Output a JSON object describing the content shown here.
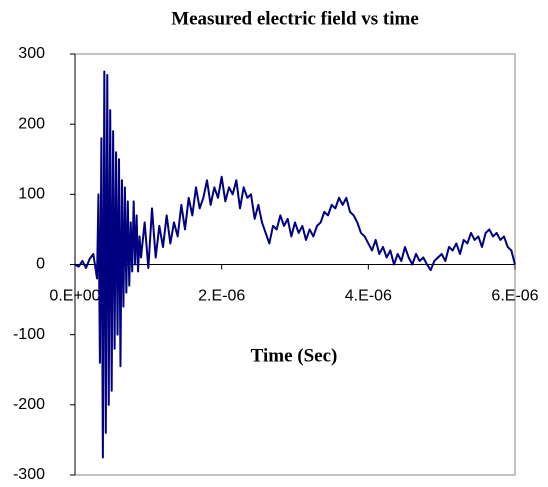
{
  "chart_data": {
    "type": "line",
    "title": "Measured electric field vs time",
    "x_label": "Time (Sec)",
    "x": [
      0,
      5e-08,
      1e-07,
      1.5e-07,
      2e-07,
      2.5e-07,
      3e-07,
      3.2e-07,
      3.4e-07,
      3.6e-07,
      3.8e-07,
      4e-07,
      4.2e-07,
      4.4e-07,
      4.6e-07,
      4.8e-07,
      5e-07,
      5.2e-07,
      5.4e-07,
      5.6e-07,
      5.8e-07,
      6e-07,
      6.2e-07,
      6.4e-07,
      6.6e-07,
      6.8e-07,
      7e-07,
      7.2e-07,
      7.4e-07,
      7.6e-07,
      7.8e-07,
      8e-07,
      8.2e-07,
      8.4e-07,
      8.6e-07,
      8.8e-07,
      9e-07,
      9.5e-07,
      1e-06,
      1.05e-06,
      1.1e-06,
      1.15e-06,
      1.2e-06,
      1.25e-06,
      1.3e-06,
      1.35e-06,
      1.4e-06,
      1.45e-06,
      1.5e-06,
      1.55e-06,
      1.6e-06,
      1.65e-06,
      1.7e-06,
      1.75e-06,
      1.8e-06,
      1.85e-06,
      1.9e-06,
      1.95e-06,
      2e-06,
      2.05e-06,
      2.1e-06,
      2.15e-06,
      2.2e-06,
      2.25e-06,
      2.3e-06,
      2.35e-06,
      2.4e-06,
      2.45e-06,
      2.5e-06,
      2.55e-06,
      2.6e-06,
      2.65e-06,
      2.7e-06,
      2.75e-06,
      2.8e-06,
      2.85e-06,
      2.9e-06,
      2.95e-06,
      3e-06,
      3.05e-06,
      3.1e-06,
      3.15e-06,
      3.2e-06,
      3.25e-06,
      3.3e-06,
      3.35e-06,
      3.4e-06,
      3.45e-06,
      3.5e-06,
      3.55e-06,
      3.6e-06,
      3.65e-06,
      3.7e-06,
      3.75e-06,
      3.8e-06,
      3.85e-06,
      3.9e-06,
      3.95e-06,
      4e-06,
      4.05e-06,
      4.1e-06,
      4.15e-06,
      4.2e-06,
      4.25e-06,
      4.3e-06,
      4.35e-06,
      4.4e-06,
      4.45e-06,
      4.5e-06,
      4.55e-06,
      4.6e-06,
      4.65e-06,
      4.7e-06,
      4.75e-06,
      4.8e-06,
      4.85e-06,
      4.9e-06,
      4.95e-06,
      5e-06,
      5.05e-06,
      5.1e-06,
      5.15e-06,
      5.2e-06,
      5.25e-06,
      5.3e-06,
      5.35e-06,
      5.4e-06,
      5.45e-06,
      5.5e-06,
      5.55e-06,
      5.6e-06,
      5.65e-06,
      5.7e-06,
      5.75e-06,
      5.8e-06,
      5.85e-06,
      5.9e-06,
      5.95e-06,
      6e-06
    ],
    "series": [
      {
        "color": "#000080",
        "values": [
          0,
          -3,
          5,
          -5,
          8,
          15,
          -20,
          100,
          -140,
          180,
          -275,
          275,
          -240,
          270,
          -200,
          220,
          -180,
          190,
          -120,
          160,
          -100,
          150,
          -145,
          120,
          -60,
          110,
          -40,
          90,
          -30,
          60,
          -10,
          90,
          0,
          70,
          -10,
          40,
          10,
          60,
          -5,
          80,
          10,
          55,
          25,
          70,
          30,
          60,
          40,
          85,
          50,
          95,
          70,
          110,
          80,
          95,
          120,
          85,
          110,
          95,
          125,
          90,
          110,
          100,
          120,
          80,
          110,
          95,
          100,
          65,
          85,
          60,
          45,
          30,
          55,
          50,
          70,
          55,
          65,
          40,
          60,
          45,
          55,
          35,
          50,
          40,
          55,
          60,
          75,
          70,
          85,
          80,
          95,
          85,
          95,
          75,
          70,
          60,
          45,
          40,
          30,
          20,
          35,
          15,
          25,
          10,
          20,
          0,
          15,
          5,
          25,
          10,
          0,
          15,
          5,
          10,
          0,
          -8,
          5,
          10,
          15,
          5,
          25,
          20,
          30,
          15,
          35,
          30,
          45,
          35,
          40,
          25,
          45,
          50,
          40,
          45,
          35,
          40,
          25,
          20,
          0
        ]
      }
    ],
    "xlim": [
      0,
      6e-06
    ],
    "ylim": [
      -300,
      300
    ],
    "xticks": [
      {
        "value": 0,
        "label": "0.E+00"
      },
      {
        "value": 2e-06,
        "label": "2.E-06"
      },
      {
        "value": 4e-06,
        "label": "4.E-06"
      },
      {
        "value": 6e-06,
        "label": "6.E-06"
      }
    ],
    "yticks": [
      -300,
      -200,
      -100,
      0,
      100,
      200,
      300
    ]
  }
}
